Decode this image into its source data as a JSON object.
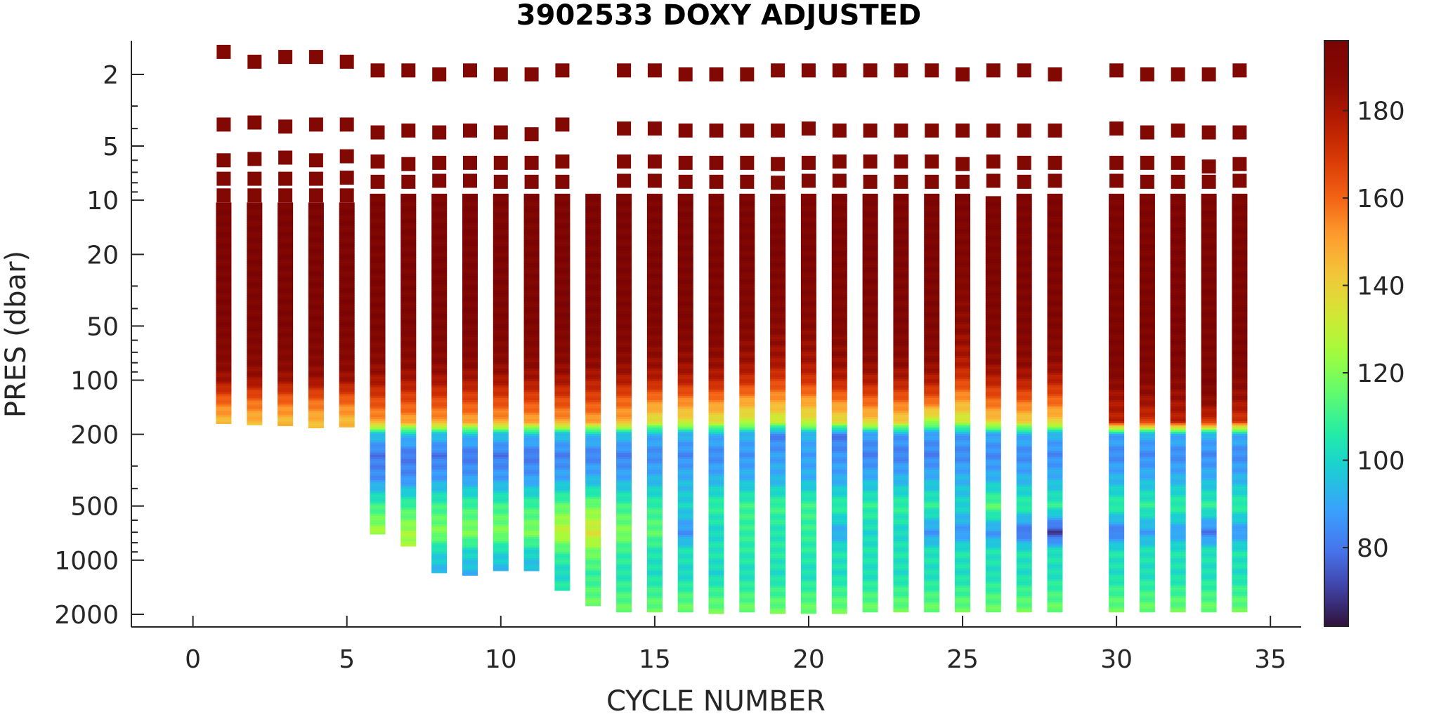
{
  "chart_data": {
    "type": "heatmap",
    "title": "3902533  DOXY ADJUSTED",
    "xlabel": "CYCLE NUMBER",
    "ylabel": "PRES (dbar)",
    "x_axis": {
      "scale": "linear",
      "range": [
        -2,
        36
      ],
      "ticks": [
        0,
        5,
        10,
        15,
        20,
        25,
        30,
        35
      ]
    },
    "y_axis": {
      "scale": "log",
      "reversed": true,
      "range": [
        1.3,
        2350
      ],
      "ticks": [
        2,
        5,
        10,
        20,
        50,
        100,
        200,
        500,
        1000,
        2000
      ]
    },
    "colorbar": {
      "colormap": "turbo",
      "range": [
        62,
        196
      ],
      "ticks": [
        80,
        100,
        120,
        140,
        160,
        180
      ],
      "location": "right"
    },
    "grid": false,
    "cycles": [
      1,
      2,
      3,
      4,
      5,
      6,
      7,
      8,
      9,
      10,
      11,
      12,
      13,
      14,
      15,
      16,
      17,
      18,
      19,
      20,
      21,
      22,
      23,
      24,
      25,
      26,
      27,
      28,
      30,
      31,
      32,
      33,
      34
    ],
    "near_surface_samples_dbar": [
      [
        1.5,
        3.8,
        6.0,
        7.6,
        9.4
      ],
      [
        1.7,
        3.7,
        5.9,
        7.6,
        9.4
      ],
      [
        1.6,
        3.9,
        5.8,
        7.6,
        9.4
      ],
      [
        1.6,
        3.8,
        6.0,
        7.6,
        9.4
      ],
      [
        1.7,
        3.8,
        5.7,
        7.5,
        9.4
      ],
      [
        1.9,
        4.2,
        6.1,
        7.9
      ],
      [
        1.9,
        4.1,
        6.3,
        7.9
      ],
      [
        2.0,
        4.2,
        6.2,
        7.8
      ],
      [
        1.9,
        4.1,
        6.2,
        7.8
      ],
      [
        2.0,
        4.2,
        6.2,
        7.9
      ],
      [
        2.0,
        4.3,
        6.2,
        7.9
      ],
      [
        1.9,
        3.8,
        6.1,
        7.9
      ],
      [],
      [
        1.9,
        4.0,
        6.1,
        7.8
      ],
      [
        1.9,
        4.0,
        6.1,
        7.8
      ],
      [
        2.0,
        4.1,
        6.2,
        7.9
      ],
      [
        2.0,
        4.1,
        6.2,
        7.9
      ],
      [
        2.0,
        4.1,
        6.2,
        7.9
      ],
      [
        1.9,
        4.1,
        6.3,
        8.0
      ],
      [
        1.9,
        4.0,
        6.2,
        7.8
      ],
      [
        1.9,
        4.1,
        6.1,
        7.8
      ],
      [
        1.9,
        4.1,
        6.1,
        7.9
      ],
      [
        1.9,
        4.1,
        6.1,
        7.9
      ],
      [
        1.9,
        4.1,
        6.1,
        7.9
      ],
      [
        2.0,
        4.1,
        6.3,
        7.9
      ],
      [
        1.9,
        4.1,
        6.1,
        7.8
      ],
      [
        1.9,
        4.1,
        6.2,
        7.9
      ],
      [
        2.0,
        4.1,
        6.2,
        7.8
      ],
      [
        1.9,
        4.0,
        6.2,
        7.8
      ],
      [
        2.0,
        4.2,
        6.2,
        7.9
      ],
      [
        2.0,
        4.1,
        6.2,
        7.9
      ],
      [
        2.0,
        4.2,
        6.5,
        7.9
      ],
      [
        1.9,
        4.2,
        6.3,
        7.8
      ]
    ],
    "profile_top_dbar": [
      10.3,
      10.3,
      10.3,
      10.3,
      10.3,
      9.2,
      9.2,
      9.2,
      9.2,
      9.2,
      9.2,
      9.2,
      9.2,
      9.2,
      9.2,
      9.2,
      9.2,
      9.2,
      9.2,
      9.2,
      9.2,
      9.2,
      9.2,
      9.2,
      9.2,
      9.5,
      9.2,
      9.2,
      9.2,
      9.2,
      9.2,
      9.2,
      9.2
    ],
    "profile_bottom_dbar": [
      175,
      178,
      180,
      185,
      183,
      720,
      840,
      1180,
      1220,
      1150,
      1150,
      1480,
      1800,
      1950,
      1950,
      1950,
      1990,
      1950,
      1990,
      1990,
      1990,
      1950,
      1950,
      1950,
      1950,
      1950,
      1950,
      1950,
      1950,
      1950,
      1950,
      1950,
      1950
    ],
    "doxy_profile_pres_dbar": [
      10,
      20,
      50,
      80,
      100,
      130,
      170,
      200,
      260,
      350,
      500,
      700,
      900,
      1200,
      1600,
      2000
    ],
    "doxy_profiles": [
      [
        194,
        194,
        193,
        188,
        182,
        160,
        145
      ],
      [
        194,
        194,
        193,
        188,
        182,
        160,
        145
      ],
      [
        194,
        194,
        193,
        188,
        182,
        160,
        145
      ],
      [
        194,
        194,
        193,
        188,
        182,
        160,
        145
      ],
      [
        194,
        194,
        193,
        188,
        182,
        160,
        145
      ],
      [
        194,
        194,
        193,
        187,
        180,
        165,
        150,
        95,
        80,
        85,
        110,
        125
      ],
      [
        194,
        194,
        193,
        187,
        180,
        165,
        150,
        95,
        80,
        85,
        110,
        125
      ],
      [
        194,
        194,
        193,
        187,
        180,
        165,
        150,
        95,
        80,
        88,
        110,
        120,
        100,
        92
      ],
      [
        194,
        194,
        193,
        187,
        180,
        165,
        150,
        95,
        80,
        88,
        110,
        120,
        100,
        92
      ],
      [
        194,
        194,
        193,
        187,
        180,
        165,
        150,
        95,
        80,
        88,
        110,
        120,
        100,
        92
      ],
      [
        194,
        194,
        193,
        187,
        180,
        165,
        150,
        95,
        80,
        88,
        110,
        120,
        100,
        92
      ],
      [
        194,
        194,
        193,
        187,
        180,
        165,
        150,
        95,
        82,
        90,
        115,
        130,
        110,
        100,
        110
      ],
      [
        194,
        194,
        192,
        186,
        178,
        165,
        150,
        95,
        82,
        92,
        118,
        135,
        118,
        108,
        115,
        120
      ],
      [
        194,
        194,
        192,
        186,
        178,
        160,
        148,
        95,
        82,
        90,
        110,
        120,
        108,
        104,
        112,
        118
      ],
      [
        194,
        194,
        192,
        184,
        176,
        155,
        135,
        92,
        84,
        92,
        108,
        115,
        104,
        102,
        112,
        118
      ],
      [
        194,
        194,
        192,
        184,
        176,
        155,
        135,
        92,
        84,
        92,
        100,
        85,
        104,
        100,
        112,
        118
      ],
      [
        194,
        194,
        192,
        184,
        176,
        155,
        135,
        92,
        84,
        92,
        108,
        100,
        104,
        100,
        112,
        118
      ],
      [
        194,
        194,
        190,
        182,
        172,
        150,
        130,
        92,
        86,
        92,
        110,
        108,
        106,
        102,
        112,
        118
      ],
      [
        194,
        194,
        188,
        180,
        168,
        150,
        130,
        82,
        88,
        92,
        110,
        104,
        106,
        102,
        112,
        118
      ],
      [
        194,
        194,
        188,
        180,
        170,
        150,
        132,
        92,
        88,
        92,
        110,
        108,
        106,
        102,
        112,
        118
      ],
      [
        194,
        194,
        190,
        184,
        176,
        155,
        136,
        80,
        86,
        90,
        108,
        90,
        104,
        102,
        112,
        118
      ],
      [
        194,
        194,
        192,
        186,
        178,
        160,
        140,
        88,
        82,
        92,
        108,
        100,
        104,
        102,
        112,
        118
      ],
      [
        194,
        194,
        192,
        186,
        178,
        160,
        140,
        88,
        82,
        92,
        108,
        100,
        104,
        102,
        112,
        118
      ],
      [
        194,
        194,
        192,
        186,
        178,
        160,
        125,
        88,
        82,
        92,
        108,
        86,
        104,
        102,
        112,
        118
      ],
      [
        194,
        192,
        186,
        178,
        168,
        150,
        130,
        88,
        84,
        92,
        100,
        86,
        104,
        102,
        112,
        118
      ],
      [
        194,
        194,
        192,
        186,
        176,
        160,
        140,
        90,
        84,
        92,
        115,
        86,
        104,
        102,
        112,
        118
      ],
      [
        194,
        194,
        192,
        186,
        178,
        160,
        140,
        92,
        84,
        92,
        108,
        78,
        104,
        102,
        112,
        118
      ],
      [
        194,
        194,
        192,
        186,
        176,
        160,
        140,
        92,
        84,
        92,
        108,
        70,
        104,
        102,
        112,
        118
      ],
      [
        194,
        194,
        194,
        192,
        188,
        180,
        176,
        90,
        84,
        92,
        108,
        80,
        104,
        102,
        112,
        118
      ],
      [
        194,
        194,
        194,
        192,
        188,
        182,
        170,
        92,
        84,
        92,
        108,
        88,
        104,
        102,
        112,
        118
      ],
      [
        194,
        194,
        194,
        192,
        188,
        182,
        176,
        92,
        84,
        92,
        108,
        88,
        104,
        102,
        112,
        118
      ],
      [
        194,
        194,
        194,
        192,
        194,
        186,
        172,
        92,
        84,
        92,
        108,
        80,
        104,
        102,
        112,
        118
      ],
      [
        194,
        194,
        194,
        192,
        188,
        182,
        170,
        92,
        84,
        92,
        108,
        86,
        104,
        102,
        112,
        118
      ]
    ]
  }
}
